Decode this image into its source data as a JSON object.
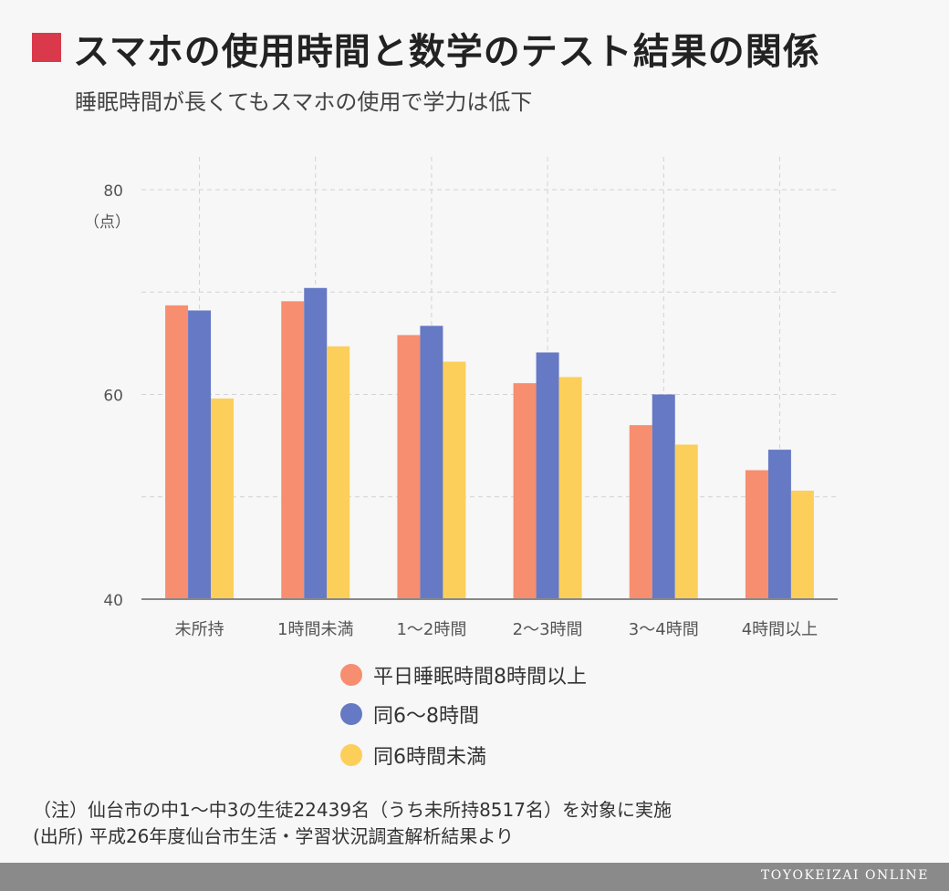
{
  "header": {
    "title": "スマホの使用時間と数学のテスト結果の関係",
    "subtitle": "睡眠時間が長くてもスマホの使用で学力は低下",
    "accent_color": "#d9394a"
  },
  "chart_data": {
    "type": "bar",
    "categories": [
      "未所持",
      "1時間未満",
      "1〜2時間",
      "2〜3時間",
      "3〜4時間",
      "4時間以上"
    ],
    "series": [
      {
        "name": "平日睡眠時間8時間以上",
        "color": "#f68e6f",
        "values": [
          68.7,
          69.1,
          65.8,
          61.1,
          57.0,
          52.6
        ]
      },
      {
        "name": "同6〜8時間",
        "color": "#6579c4",
        "values": [
          68.2,
          70.4,
          66.7,
          64.1,
          60.0,
          54.6
        ]
      },
      {
        "name": "同6時間未満",
        "color": "#fbcf5a",
        "values": [
          59.6,
          64.7,
          63.2,
          61.7,
          55.1,
          50.6
        ]
      }
    ],
    "yticks": [
      40,
      60,
      80
    ],
    "ylim": [
      40,
      80
    ],
    "ylabel": "（点）",
    "grid": true,
    "legend_position": "bottom"
  },
  "notes": {
    "note1": "（注）仙台市の中1〜中3の生徒22439名（うち未所持8517名）を対象に実施",
    "note2": "(出所) 平成26年度仙台市生活・学習状況調査解析結果より"
  },
  "footer": {
    "brand": "TOYOKEIZAI ONLINE",
    "color": "#8a8a8a"
  }
}
